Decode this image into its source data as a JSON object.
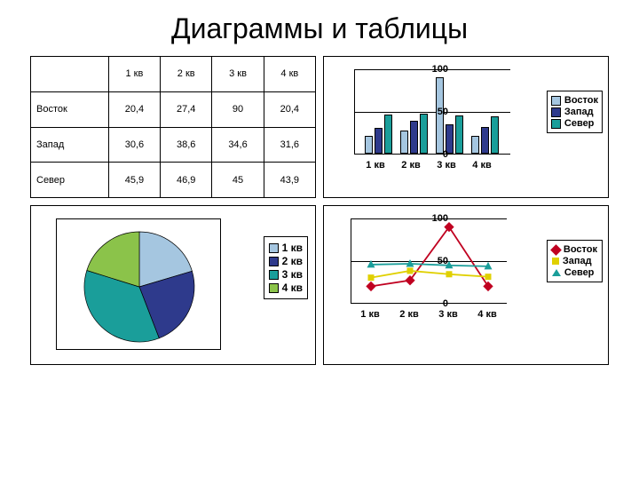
{
  "title": "Диаграммы и таблицы",
  "colors": {
    "east": "#a5c6e0",
    "west": "#2e3a8c",
    "north": "#1a9e9a",
    "kv4": "#8bc34a",
    "line_east": "#c00020",
    "line_west": "#e0d000",
    "line_north": "#1a9e9a"
  },
  "table": {
    "headers": [
      "",
      "1 кв",
      "2 кв",
      "3 кв",
      "4 кв"
    ],
    "rows": [
      {
        "label": "Восток",
        "cells": [
          "20,4",
          "27,4",
          "90",
          "20,4"
        ]
      },
      {
        "label": "Запад",
        "cells": [
          "30,6",
          "38,6",
          "34,6",
          "31,6"
        ]
      },
      {
        "label": "Север",
        "cells": [
          "45,9",
          "46,9",
          "45",
          "43,9"
        ]
      }
    ]
  },
  "barchart": {
    "type": "bar",
    "ylim": [
      0,
      100
    ],
    "yticks": [
      0,
      50,
      100
    ],
    "categories": [
      "1 кв",
      "2 кв",
      "3 кв",
      "4 кв"
    ],
    "series": [
      {
        "name": "Восток",
        "color": "#a5c6e0",
        "values": [
          20.4,
          27.4,
          90,
          20.4
        ]
      },
      {
        "name": "Запад",
        "color": "#2e3a8c",
        "values": [
          30.6,
          38.6,
          34.6,
          31.6
        ]
      },
      {
        "name": "Север",
        "color": "#1a9e9a",
        "values": [
          45.9,
          46.9,
          45,
          43.9
        ]
      }
    ]
  },
  "piechart": {
    "type": "pie",
    "slices": [
      {
        "label": "1 кв",
        "value": 96.9,
        "color": "#a5c6e0"
      },
      {
        "label": "2 кв",
        "value": 112.9,
        "color": "#2e3a8c"
      },
      {
        "label": "3 кв",
        "value": 169.6,
        "color": "#1a9e9a"
      },
      {
        "label": "4 кв",
        "value": 95.9,
        "color": "#8bc34a"
      }
    ]
  },
  "linechart": {
    "type": "line",
    "ylim": [
      0,
      100
    ],
    "yticks": [
      0,
      50,
      100
    ],
    "categories": [
      "1 кв",
      "2 кв",
      "3 кв",
      "4 кв"
    ],
    "series": [
      {
        "name": "Восток",
        "color": "#c00020",
        "marker": "diamond",
        "values": [
          20.4,
          27.4,
          90,
          20.4
        ]
      },
      {
        "name": "Запад",
        "color": "#e0d000",
        "marker": "square",
        "values": [
          30.6,
          38.6,
          34.6,
          31.6
        ]
      },
      {
        "name": "Север",
        "color": "#1a9e9a",
        "marker": "triangle",
        "values": [
          45.9,
          46.9,
          45,
          43.9
        ]
      }
    ]
  }
}
